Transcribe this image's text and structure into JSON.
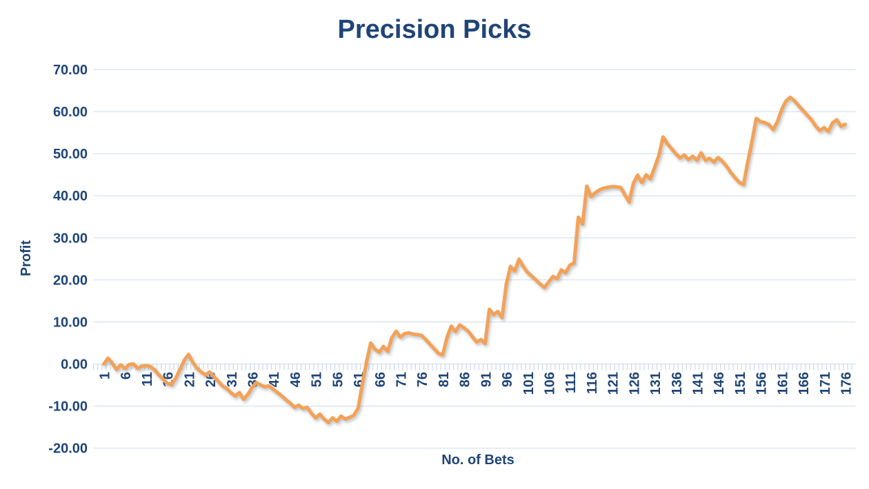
{
  "title": "Precision Picks",
  "colors": {
    "title_text": "#1F4477",
    "axis_text": "#1F4477",
    "gridline": "#DAE4F1",
    "axis_tick": "#C9D9EC",
    "line": "#F2A258",
    "line_shadow": "#8f949b",
    "background": "#FFFFFF"
  },
  "chart_data": {
    "type": "line",
    "title": "Precision Picks",
    "xlabel": "No. of Bets",
    "ylabel": "Profit",
    "legend": "none",
    "grid": "horizontal",
    "ylim": [
      -20,
      70
    ],
    "y_tick_labels": [
      "70.00",
      "60.00",
      "50.00",
      "40.00",
      "30.00",
      "20.00",
      "10.00",
      "0.00",
      "-10.00",
      "-20.00"
    ],
    "x_tick_labels": [
      "1",
      "6",
      "11",
      "16",
      "21",
      "26",
      "31",
      "36",
      "41",
      "46",
      "51",
      "56",
      "61",
      "66",
      "71",
      "76",
      "81",
      "86",
      "91",
      "96",
      "101",
      "106",
      "111",
      "116",
      "121",
      "126",
      "131",
      "136",
      "141",
      "146",
      "151",
      "156",
      "161",
      "166",
      "171",
      "176"
    ],
    "x_first": 1,
    "x_last": 176,
    "series_name": "Profit",
    "values": [
      0,
      1.4,
      0.2,
      -1.3,
      -0.2,
      -1.1,
      -0.1,
      0,
      -1,
      -0.5,
      -0.4,
      -0.6,
      -1.4,
      -2.6,
      -3.6,
      -4.6,
      -4.9,
      -3.3,
      -1.3,
      0.9,
      2.3,
      0.4,
      -1,
      -1.9,
      -2.6,
      -1.9,
      -3,
      -4.1,
      -5.2,
      -5.8,
      -6.8,
      -7.6,
      -6.8,
      -8.4,
      -7.2,
      -5.6,
      -4.4,
      -5,
      -5.4,
      -5.2,
      -6,
      -6.8,
      -7.6,
      -8.5,
      -9.3,
      -10.3,
      -9.8,
      -10.6,
      -10.3,
      -11.7,
      -12.8,
      -11.9,
      -13.1,
      -13.9,
      -12.8,
      -13.6,
      -12.4,
      -13.1,
      -12.7,
      -12.2,
      -10.6,
      -5,
      0.5,
      5,
      3.5,
      2.8,
      4.2,
      3,
      6.3,
      7.8,
      6.4,
      7.2,
      7.4,
      7.1,
      7,
      6.8,
      5.8,
      4.7,
      3.6,
      2.5,
      2.2,
      6.3,
      9,
      7.7,
      9.3,
      8.6,
      7.8,
      6.5,
      5.2,
      5.8,
      4.9,
      13,
      11.7,
      12.5,
      11,
      19,
      23.2,
      22.1,
      24.9,
      23.2,
      21.8,
      20.9,
      20,
      19,
      18.2,
      19.5,
      20.8,
      20.3,
      22.4,
      21.7,
      23.5,
      24,
      34.9,
      33.3,
      42.3,
      39.8,
      40.7,
      41.4,
      41.8,
      42,
      42.2,
      42.1,
      42,
      40.2,
      38.5,
      43,
      44.9,
      43.1,
      45,
      44,
      46.7,
      49.5,
      54,
      52.4,
      51.2,
      50,
      49,
      49.7,
      48.6,
      49.4,
      48.4,
      50.2,
      48.4,
      48.9,
      48,
      49.1,
      48.2,
      47,
      45.5,
      44.3,
      43.2,
      42.7,
      48,
      53,
      58.4,
      57.6,
      57.4,
      56.9,
      55.7,
      57.6,
      60.5,
      62.5,
      63.4,
      62.6,
      61.4,
      60.3,
      59.2,
      58.1,
      56.6,
      55.5,
      56.2,
      55.3,
      57.3,
      58.1,
      56.5,
      57
    ]
  }
}
